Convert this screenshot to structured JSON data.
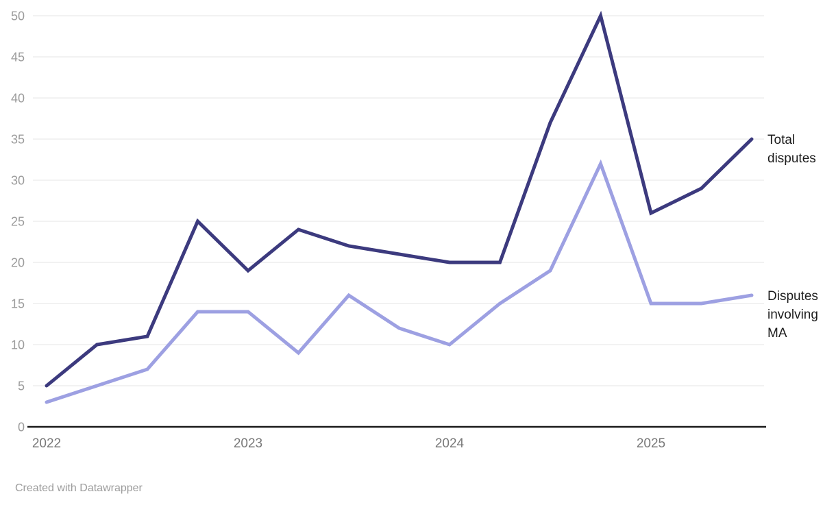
{
  "chart_data": {
    "type": "line",
    "x": [
      "2022 Q1",
      "2022 Q2",
      "2022 Q3",
      "2022 Q4",
      "2023 Q1",
      "2023 Q2",
      "2023 Q3",
      "2023 Q4",
      "2024 Q1",
      "2024 Q2",
      "2024 Q3",
      "2024 Q4",
      "2025 Q1",
      "2025 Q2",
      "2025 Q3"
    ],
    "x_year_ticks": [
      {
        "index": 0,
        "label": "2022"
      },
      {
        "index": 4,
        "label": "2023"
      },
      {
        "index": 8,
        "label": "2024"
      },
      {
        "index": 12,
        "label": "2025"
      }
    ],
    "series": [
      {
        "name": "Total disputes",
        "label_lines": [
          "Total",
          "disputes"
        ],
        "color": "#3c3a7e",
        "values": [
          5,
          10,
          11,
          25,
          19,
          24,
          22,
          21,
          20,
          20,
          37,
          50,
          26,
          29,
          35
        ]
      },
      {
        "name": "Disputes involving MA",
        "label_lines": [
          "Disputes",
          "involving",
          "MA"
        ],
        "color": "#9da0e2",
        "values": [
          3,
          5,
          7,
          14,
          14,
          9,
          16,
          12,
          10,
          15,
          19,
          32,
          15,
          15,
          16
        ]
      }
    ],
    "title": "",
    "xlabel": "",
    "ylabel": "",
    "ylim": [
      0,
      50
    ],
    "y_ticks": [
      0,
      5,
      10,
      15,
      20,
      25,
      30,
      35,
      40,
      45,
      50
    ],
    "grid": true,
    "legend_position": "right-of-line-end"
  },
  "colors": {
    "gridline": "#e6e6e6",
    "axis_line": "#1a1a1a",
    "series_dark": "#3c3a7e",
    "series_light": "#9da0e2"
  },
  "attribution": {
    "text": "Created with Datawrapper"
  }
}
